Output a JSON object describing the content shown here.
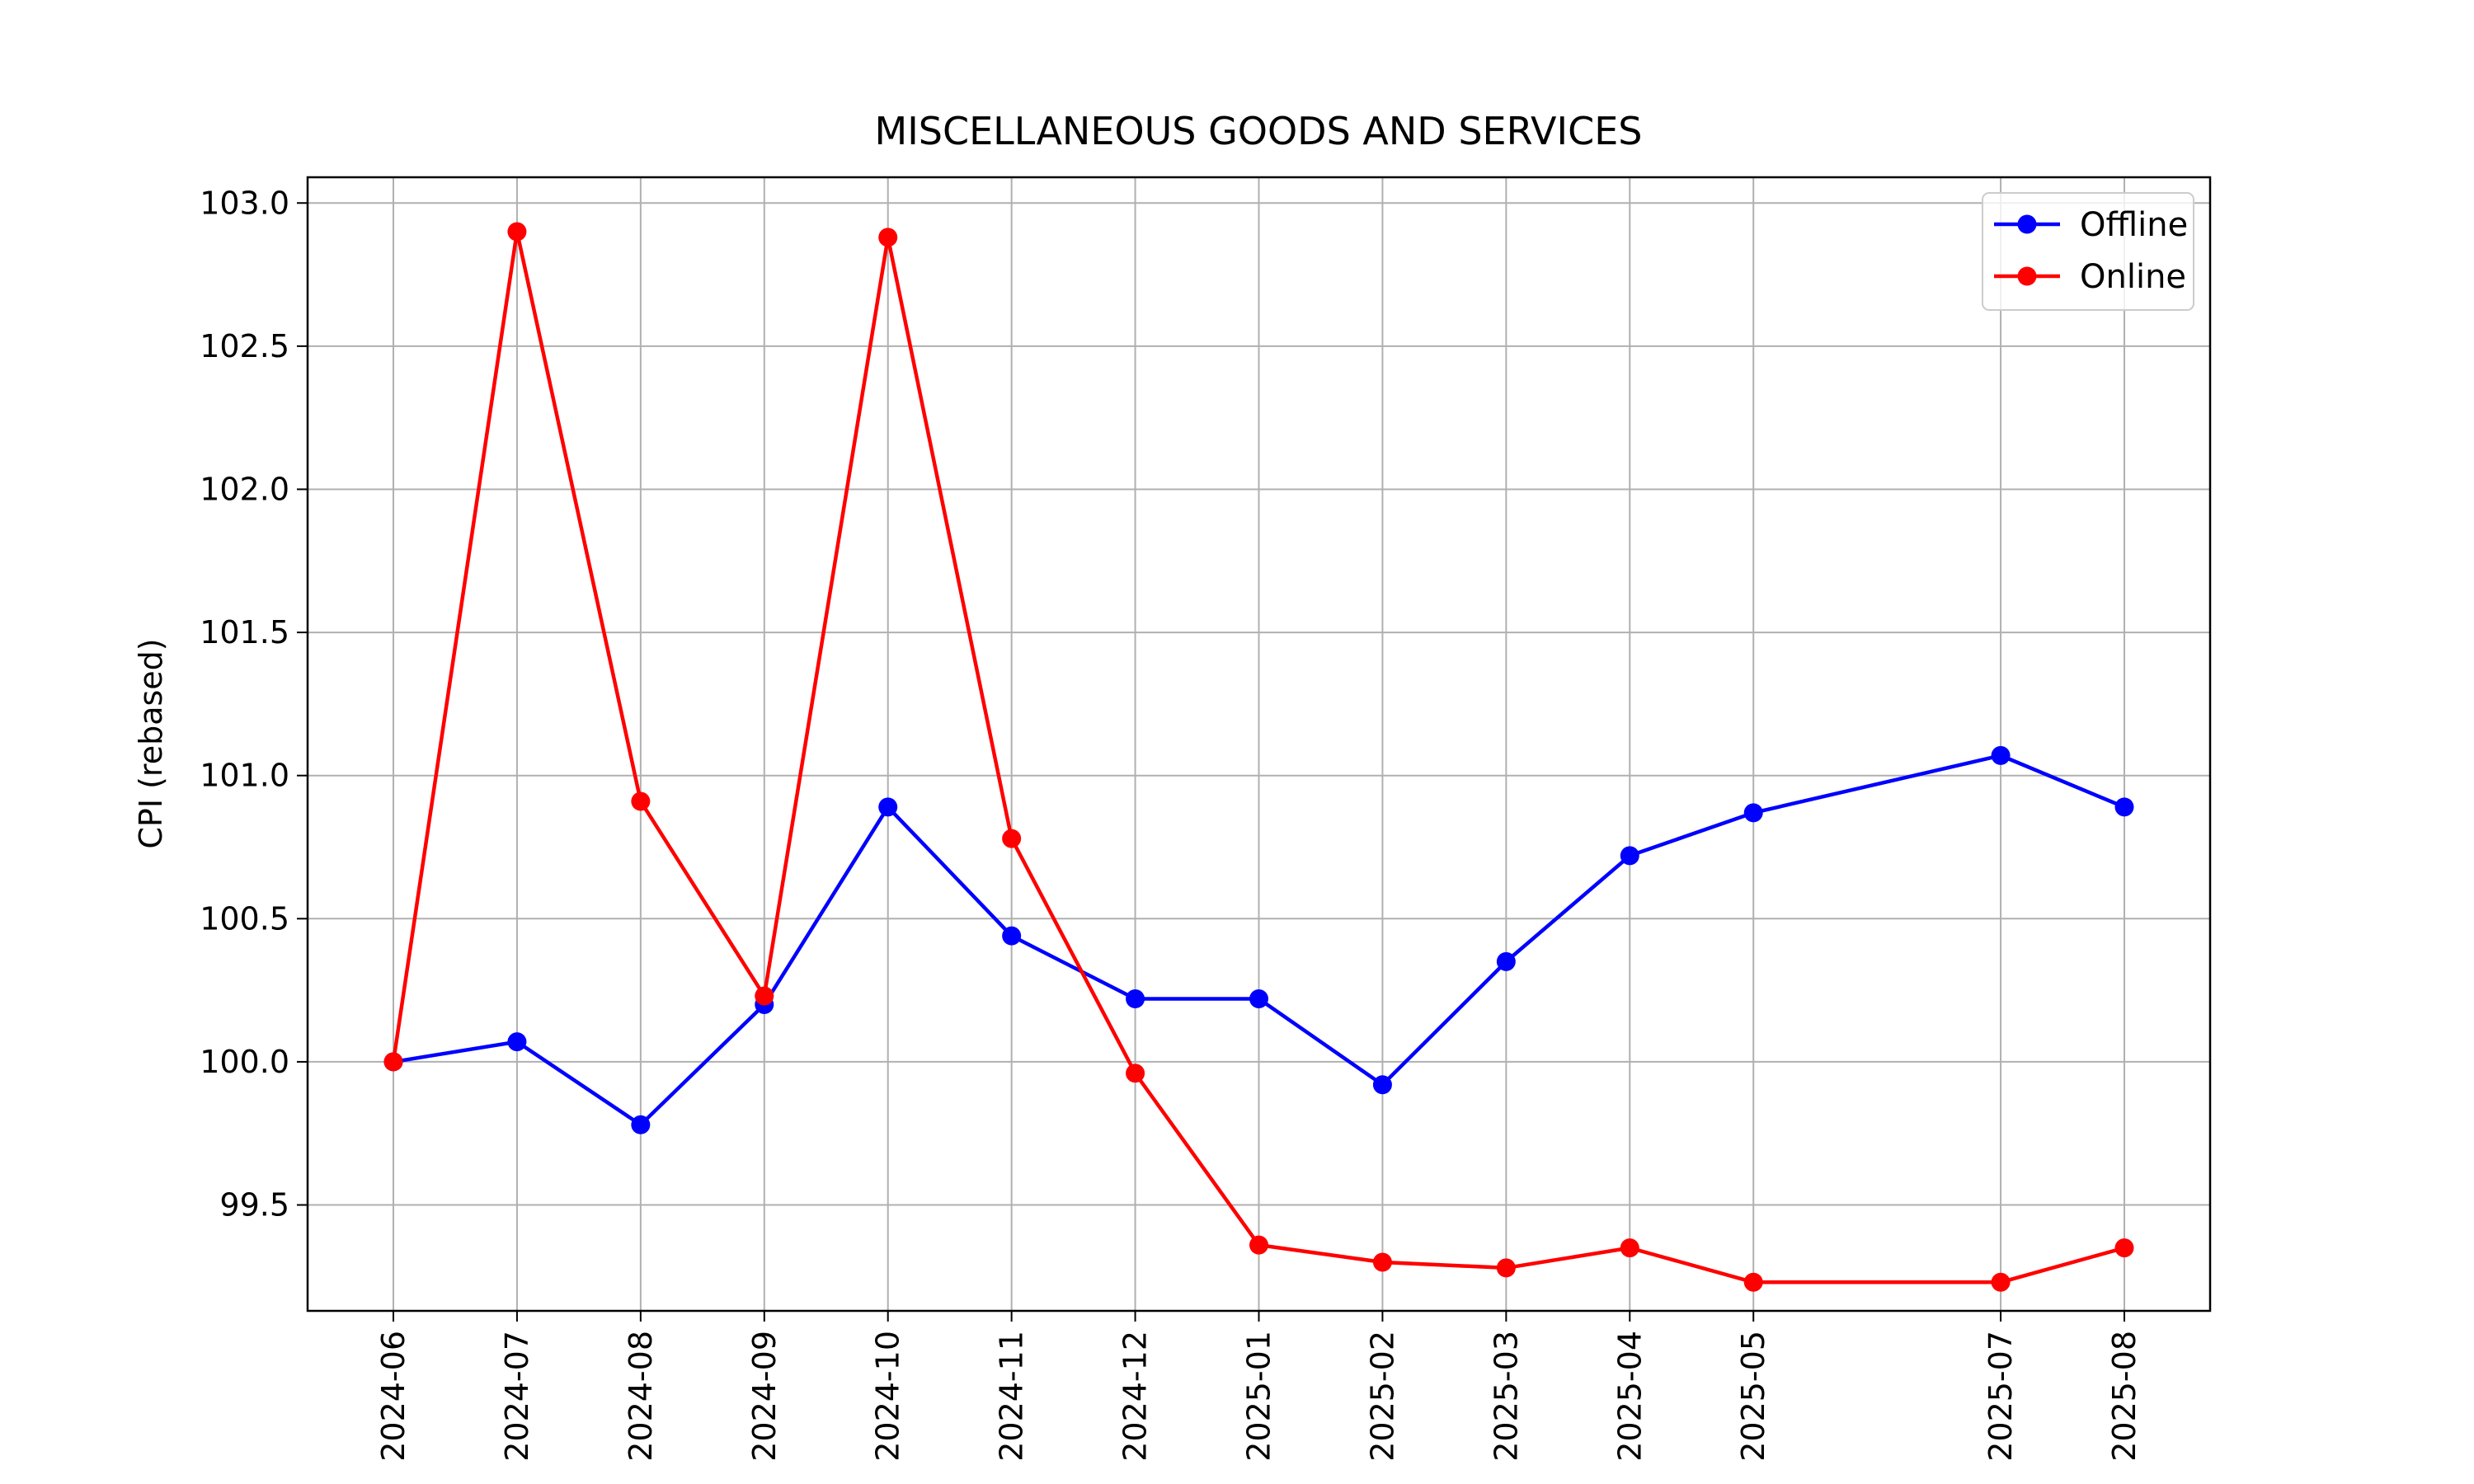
{
  "chart_data": {
    "type": "line",
    "title": "MISCELLANEOUS GOODS AND SERVICES",
    "xlabel": "",
    "ylabel": "CPI (rebased)",
    "x": [
      "2024-06",
      "2024-07",
      "2024-08",
      "2024-09",
      "2024-10",
      "2024-11",
      "2024-12",
      "2025-01",
      "2025-02",
      "2025-03",
      "2025-04",
      "2025-05",
      "2025-07",
      "2025-08"
    ],
    "xticks": [
      "2024-06",
      "2024-07",
      "2024-08",
      "2024-09",
      "2024-10",
      "2024-11",
      "2024-12",
      "2025-01",
      "2025-02",
      "2025-03",
      "2025-04",
      "2025-05",
      "2025-07",
      "2025-08"
    ],
    "yticks": [
      "99.5",
      "100.0",
      "100.5",
      "101.0",
      "101.5",
      "102.0",
      "102.5",
      "103.0"
    ],
    "ylim": [
      99.13,
      103.09
    ],
    "grid": true,
    "legend_position": "top-right",
    "series": [
      {
        "name": "Offline",
        "color": "#0000ff",
        "values": [
          100.0,
          100.07,
          99.78,
          100.2,
          100.89,
          100.44,
          100.22,
          100.22,
          99.92,
          100.35,
          100.72,
          100.87,
          101.07,
          100.89
        ]
      },
      {
        "name": "Online",
        "color": "#ff0000",
        "values": [
          100.0,
          102.9,
          100.91,
          100.23,
          102.88,
          100.78,
          99.96,
          99.36,
          99.3,
          99.28,
          99.35,
          99.23,
          99.23,
          99.35
        ]
      }
    ]
  }
}
